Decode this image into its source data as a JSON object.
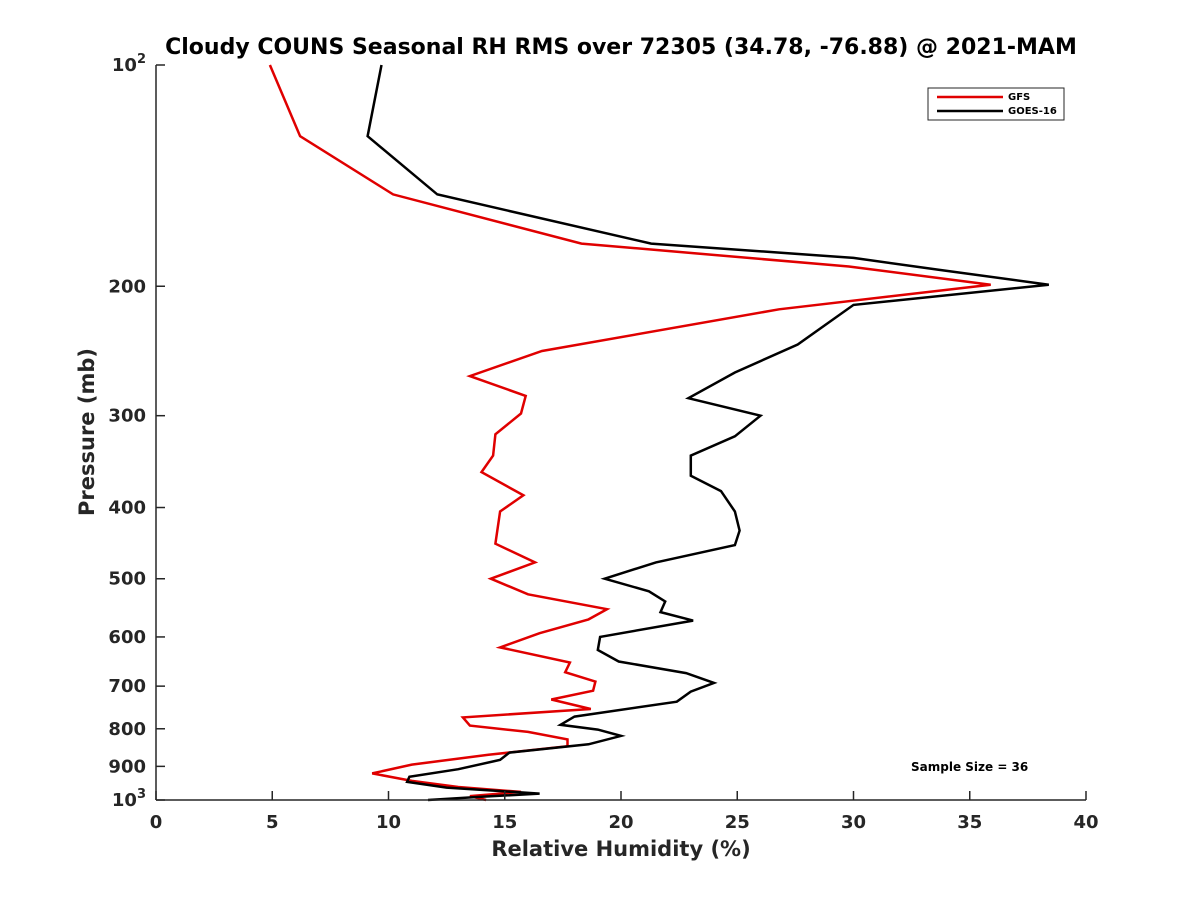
{
  "chart_data": {
    "type": "line",
    "title": "Cloudy COUNS Seasonal RH RMS over 72305 (34.78, -76.88) @ 2021-MAM",
    "xlabel": "Relative Humidity (%)",
    "ylabel": "Pressure (mb)",
    "xlim": [
      0,
      40
    ],
    "ylim": [
      100,
      1000
    ],
    "yscale": "log",
    "y_reversed": true,
    "x_ticks": [
      "0",
      "5",
      "10",
      "15",
      "20",
      "25",
      "30",
      "35",
      "40"
    ],
    "y_ticks": [
      {
        "value": 100,
        "base": "10",
        "exp": "2"
      },
      {
        "value": 200,
        "label": "200"
      },
      {
        "value": 300,
        "label": "300"
      },
      {
        "value": 400,
        "label": "400"
      },
      {
        "value": 500,
        "label": "500"
      },
      {
        "value": 600,
        "label": "600"
      },
      {
        "value": 700,
        "label": "700"
      },
      {
        "value": 800,
        "label": "800"
      },
      {
        "value": 900,
        "label": "900"
      },
      {
        "value": 1000,
        "base": "10",
        "exp": "3"
      }
    ],
    "grid": false,
    "legend_position": "top-right",
    "annotation": "Sample Size = 36",
    "series": [
      {
        "name": "GFS",
        "color": "#e00000",
        "points": [
          [
            4.9,
            100
          ],
          [
            6.2,
            125
          ],
          [
            10.2,
            150
          ],
          [
            18.3,
            175
          ],
          [
            29.8,
            188
          ],
          [
            35.9,
            199
          ],
          [
            26.8,
            215
          ],
          [
            16.6,
            245
          ],
          [
            13.5,
            265
          ],
          [
            15.9,
            282
          ],
          [
            15.7,
            298
          ],
          [
            14.6,
            318
          ],
          [
            14.5,
            340
          ],
          [
            14.0,
            358
          ],
          [
            15.8,
            385
          ],
          [
            14.8,
            405
          ],
          [
            14.6,
            448
          ],
          [
            16.3,
            475
          ],
          [
            14.4,
            500
          ],
          [
            16.0,
            525
          ],
          [
            19.4,
            550
          ],
          [
            18.6,
            568
          ],
          [
            16.5,
            593
          ],
          [
            14.8,
            620
          ],
          [
            17.8,
            650
          ],
          [
            17.6,
            670
          ],
          [
            18.9,
            690
          ],
          [
            18.8,
            710
          ],
          [
            17.0,
            730
          ],
          [
            18.7,
            752
          ],
          [
            13.2,
            772
          ],
          [
            13.5,
            792
          ],
          [
            16.0,
            808
          ],
          [
            17.7,
            827
          ],
          [
            17.7,
            845
          ],
          [
            14.3,
            868
          ],
          [
            11.0,
            895
          ],
          [
            9.3,
            920
          ],
          [
            11.0,
            942
          ],
          [
            13.0,
            960
          ],
          [
            15.7,
            975
          ],
          [
            13.5,
            988
          ],
          [
            14.2,
            1000
          ]
        ]
      },
      {
        "name": "GOES-16",
        "color": "#000000",
        "points": [
          [
            9.7,
            100
          ],
          [
            9.1,
            125
          ],
          [
            12.1,
            150
          ],
          [
            21.3,
            175
          ],
          [
            30.0,
            183
          ],
          [
            33.7,
            190
          ],
          [
            38.4,
            199
          ],
          [
            30.0,
            212
          ],
          [
            27.6,
            240
          ],
          [
            24.9,
            262
          ],
          [
            22.9,
            284
          ],
          [
            26.0,
            300
          ],
          [
            24.9,
            320
          ],
          [
            23.0,
            340
          ],
          [
            23.0,
            362
          ],
          [
            24.3,
            380
          ],
          [
            24.9,
            405
          ],
          [
            25.1,
            430
          ],
          [
            24.9,
            450
          ],
          [
            21.5,
            475
          ],
          [
            19.3,
            500
          ],
          [
            21.2,
            520
          ],
          [
            21.9,
            537
          ],
          [
            21.7,
            555
          ],
          [
            23.1,
            570
          ],
          [
            19.1,
            600
          ],
          [
            19.0,
            625
          ],
          [
            19.9,
            648
          ],
          [
            22.8,
            672
          ],
          [
            24.0,
            693
          ],
          [
            23.0,
            712
          ],
          [
            22.4,
            735
          ],
          [
            18.0,
            770
          ],
          [
            17.4,
            790
          ],
          [
            19.0,
            802
          ],
          [
            20.0,
            818
          ],
          [
            18.6,
            840
          ],
          [
            15.2,
            862
          ],
          [
            14.8,
            882
          ],
          [
            13.0,
            908
          ],
          [
            10.9,
            930
          ],
          [
            10.8,
            945
          ],
          [
            12.5,
            962
          ],
          [
            16.5,
            980
          ],
          [
            14.0,
            990
          ],
          [
            11.7,
            1000
          ]
        ]
      }
    ]
  }
}
